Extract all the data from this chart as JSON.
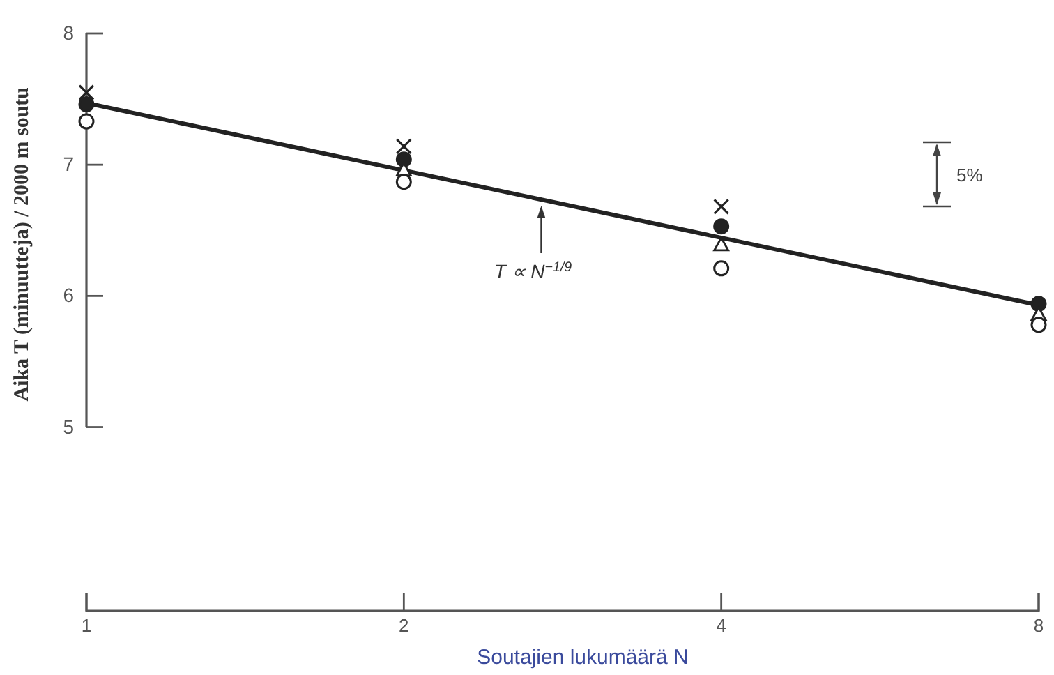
{
  "chart_data": {
    "type": "scatter",
    "xlabel": "Soutajien lukumäärä N",
    "ylabel": "Aika T (minuutteja) / 2000 m soutu",
    "x": [
      1,
      2,
      4,
      8
    ],
    "log": "x",
    "xlim": [
      1,
      8
    ],
    "xticks": [
      1,
      2,
      4,
      8
    ],
    "ylim": [
      3.6,
      8
    ],
    "yticks": [
      5,
      6,
      7,
      8
    ],
    "series": [
      {
        "type": "line",
        "x": [
          1,
          8
        ],
        "values": [
          7.47,
          5.93
        ],
        "color": "#222222",
        "marker": "none"
      },
      {
        "color": "#222222",
        "marker": "cross",
        "values": [
          7.55,
          7.14,
          6.68,
          null
        ]
      },
      {
        "color": "#222222",
        "marker": "circle",
        "values": [
          7.46,
          7.04,
          6.53,
          5.94
        ]
      },
      {
        "color": "#ffffff",
        "marker": "triangle",
        "values": [
          null,
          6.96,
          6.39,
          5.86
        ]
      },
      {
        "color": "#ffffff",
        "marker": "circle",
        "values": [
          7.33,
          6.87,
          6.21,
          5.78
        ]
      }
    ],
    "annotations": [
      {
        "text": "T ∝ N$^{−1/9}$",
        "x": 2.7,
        "y": 6.73
      },
      "5%"
    ]
  }
}
